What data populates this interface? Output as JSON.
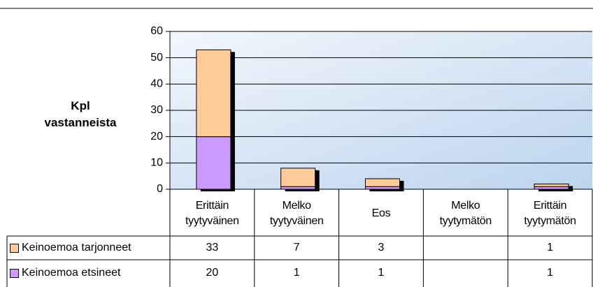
{
  "chart_data": {
    "type": "bar",
    "stacked": true,
    "y_axis_label": "Kpl vastanneista",
    "categories": [
      "Erittäin tyytyväinen",
      "Melko tyytyväinen",
      "Eos",
      "Melko tyytymätön",
      "Erittäin tyytymätön"
    ],
    "series": [
      {
        "name": "Keinoemoa tarjonneet",
        "color": "#ffcc99",
        "values": [
          33,
          7,
          3,
          null,
          1
        ]
      },
      {
        "name": "Keinoemoa etsineet",
        "color": "#cc99ff",
        "values": [
          20,
          1,
          1,
          null,
          1
        ]
      }
    ],
    "stack_order": [
      1,
      0
    ],
    "ylim": [
      0,
      60
    ],
    "yticks": [
      0,
      10,
      20,
      30,
      40,
      50,
      60
    ],
    "grid": true
  }
}
